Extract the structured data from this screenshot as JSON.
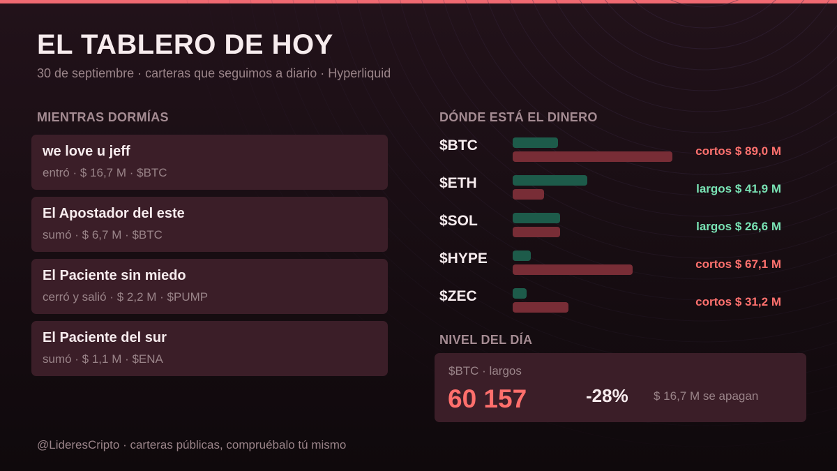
{
  "header": {
    "title": "EL TABLERO DE HOY",
    "subtitle": "30 de septiembre · carteras que seguimos a diario · Hyperliquid"
  },
  "activity": {
    "label": "MIENTRAS DORMÍAS",
    "items": [
      {
        "name": "we love u jeff",
        "detail": "entró · $ 16,7 M · $BTC"
      },
      {
        "name": "El Apostador del este",
        "detail": "sumó · $ 6,7 M · $BTC"
      },
      {
        "name": "El Paciente sin miedo",
        "detail": "cerró y salió · $ 2,2 M · $PUMP"
      },
      {
        "name": "El Paciente del sur",
        "detail": "sumó · $ 1,1 M · $ENA"
      }
    ]
  },
  "money": {
    "label": "DÓNDE ESTÁ EL DINERO"
  },
  "chart_data": {
    "type": "bar",
    "categories": [
      "$BTC",
      "$ETH",
      "$SOL",
      "$HYPE",
      "$ZEC"
    ],
    "series": [
      {
        "values": [
          24,
          39.5,
          25,
          9.5,
          7.5
        ]
      },
      {
        "values": [
          84.5,
          16.5,
          25,
          63.5,
          29.5
        ]
      }
    ],
    "net_labels": [
      {
        "text": "cortos $ 89,0 M",
        "side": "short"
      },
      {
        "text": "largos $ 41,9 M",
        "side": "long"
      },
      {
        "text": "largos $ 26,6 M",
        "side": "long"
      },
      {
        "text": "cortos $ 67,1 M",
        "side": "short"
      },
      {
        "text": "cortos $ 31,2 M",
        "side": "short"
      }
    ],
    "xlim": [
      0,
      85
    ],
    "colors": {
      "long_bar": "#1d5b4a",
      "short_bar": "#782d36",
      "long_text": "#79e2b4",
      "short_text": "#ff716e"
    }
  },
  "level": {
    "label": "NIVEL DEL DÍA",
    "sub": "$BTC · largos",
    "price": "60 157",
    "pct": "-28%",
    "note": "$ 16,7 M se apagan"
  },
  "footer": {
    "text": "@LideresCripto · carteras públicas, compruébalo tú mismo"
  },
  "colors": {
    "accent": "#f06a72",
    "card": "#3b1e28",
    "price": "#ff6f6c"
  }
}
